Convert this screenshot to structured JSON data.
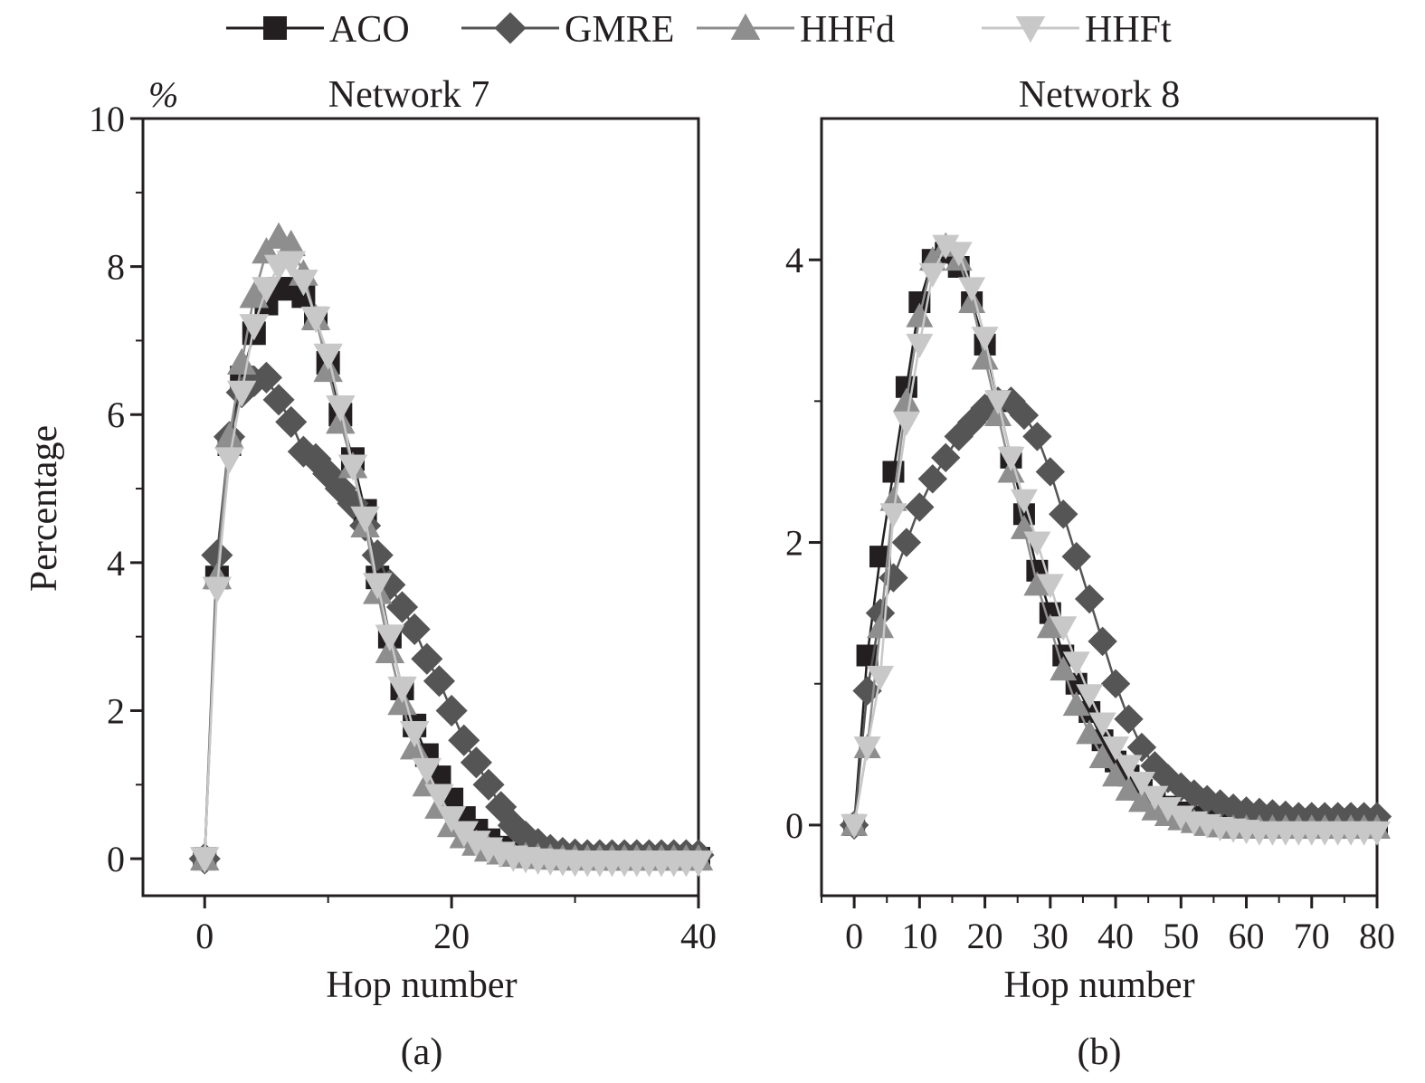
{
  "legend": {
    "placement": "top-center",
    "entries": [
      {
        "name": "ACO",
        "marker": "square",
        "color": "#231f20"
      },
      {
        "name": "GMRE",
        "marker": "diamond",
        "color": "#555555"
      },
      {
        "name": "HHFd",
        "marker": "triangle-up",
        "color": "#8e8e8e"
      },
      {
        "name": "HHFt",
        "marker": "triangle-down",
        "color": "#c8c8c8"
      }
    ]
  },
  "chart_data": [
    {
      "type": "line",
      "panel_label": "(a)",
      "title": "Network 7",
      "unit_label": "%",
      "xlabel": "Hop number",
      "ylabel": "Percentage",
      "xlim": [
        -5,
        40
      ],
      "ylim": [
        -0.5,
        10
      ],
      "xticks": [
        0,
        20,
        40
      ],
      "yticks": [
        0,
        2,
        4,
        6,
        8,
        10
      ],
      "grid": false,
      "x": [
        0,
        1,
        2,
        3,
        4,
        5,
        6,
        7,
        8,
        9,
        10,
        11,
        12,
        13,
        14,
        15,
        16,
        17,
        18,
        19,
        20,
        21,
        22,
        23,
        24,
        25,
        26,
        27,
        28,
        29,
        30,
        31,
        32,
        33,
        34,
        35,
        36,
        37,
        38,
        39,
        40
      ],
      "series": [
        {
          "name": "ACO",
          "values": [
            0,
            3.8,
            5.6,
            6.5,
            7.1,
            7.5,
            7.7,
            7.7,
            7.6,
            7.3,
            6.7,
            6.0,
            5.4,
            4.7,
            3.8,
            3.0,
            2.3,
            1.8,
            1.4,
            1.1,
            0.8,
            0.55,
            0.38,
            0.25,
            0.15,
            0.1,
            0.06,
            0.04,
            0.03,
            0.02,
            0.01,
            0.01,
            0,
            0,
            0,
            0,
            0,
            0,
            0,
            0,
            0
          ]
        },
        {
          "name": "GMRE",
          "values": [
            0,
            4.1,
            5.7,
            6.3,
            6.45,
            6.5,
            6.2,
            5.9,
            5.5,
            5.4,
            5.2,
            5.0,
            4.8,
            4.5,
            4.1,
            3.7,
            3.4,
            3.1,
            2.7,
            2.4,
            2.0,
            1.6,
            1.3,
            1.0,
            0.7,
            0.45,
            0.3,
            0.2,
            0.12,
            0.08,
            0.06,
            0.05,
            0.05,
            0.05,
            0.05,
            0.05,
            0.05,
            0.05,
            0.05,
            0.05,
            0.05
          ]
        },
        {
          "name": "HHFd",
          "values": [
            0,
            3.8,
            5.7,
            6.7,
            7.6,
            8.2,
            8.4,
            8.3,
            7.9,
            7.3,
            6.6,
            5.9,
            5.3,
            4.5,
            3.6,
            2.8,
            2.1,
            1.5,
            1.0,
            0.7,
            0.45,
            0.3,
            0.2,
            0.12,
            0.08,
            0.05,
            0.03,
            0.02,
            0.01,
            0,
            0,
            0,
            0,
            0,
            0,
            0,
            0,
            0,
            0,
            0,
            0
          ]
        },
        {
          "name": "HHFt",
          "values": [
            0,
            3.65,
            5.4,
            6.3,
            7.2,
            7.7,
            8.0,
            8.05,
            7.8,
            7.3,
            6.8,
            6.1,
            5.3,
            4.6,
            3.7,
            3.0,
            2.3,
            1.7,
            1.2,
            0.85,
            0.55,
            0.35,
            0.22,
            0.13,
            0.07,
            0.02,
            0,
            -0.02,
            -0.03,
            -0.04,
            -0.05,
            -0.05,
            -0.05,
            -0.05,
            -0.05,
            -0.05,
            -0.05,
            -0.05,
            -0.05,
            -0.05,
            -0.05
          ]
        }
      ]
    },
    {
      "type": "line",
      "panel_label": "(b)",
      "title": "Network 8",
      "unit_label": "",
      "xlabel": "Hop number",
      "ylabel": "",
      "xlim": [
        -5,
        80
      ],
      "ylim": [
        -0.5,
        5
      ],
      "xticks": [
        0,
        10,
        20,
        30,
        40,
        50,
        60,
        70,
        80
      ],
      "yticks": [
        0,
        2,
        4
      ],
      "grid": false,
      "x": [
        0,
        2,
        4,
        6,
        8,
        10,
        12,
        14,
        16,
        18,
        20,
        22,
        24,
        26,
        28,
        30,
        32,
        34,
        36,
        38,
        40,
        42,
        44,
        46,
        48,
        50,
        52,
        54,
        56,
        58,
        60,
        62,
        64,
        66,
        68,
        70,
        72,
        74,
        76,
        78,
        80
      ],
      "series": [
        {
          "name": "ACO",
          "values": [
            0,
            1.2,
            1.9,
            2.5,
            3.1,
            3.7,
            4.0,
            4.05,
            3.95,
            3.7,
            3.4,
            3.0,
            2.6,
            2.2,
            1.8,
            1.5,
            1.2,
            1.0,
            0.8,
            0.6,
            0.45,
            0.35,
            0.25,
            0.18,
            0.13,
            0.09,
            0.06,
            0.04,
            0.02,
            0.01,
            0,
            -0.01,
            -0.01,
            -0.02,
            -0.02,
            -0.02,
            -0.02,
            -0.02,
            -0.02,
            -0.02,
            -0.02
          ]
        },
        {
          "name": "GMRE",
          "values": [
            0,
            0.95,
            1.5,
            1.75,
            2.0,
            2.25,
            2.45,
            2.6,
            2.75,
            2.85,
            2.95,
            3.0,
            3.0,
            2.9,
            2.75,
            2.5,
            2.2,
            1.9,
            1.6,
            1.3,
            1.0,
            0.75,
            0.55,
            0.42,
            0.33,
            0.27,
            0.22,
            0.18,
            0.15,
            0.12,
            0.1,
            0.09,
            0.08,
            0.07,
            0.06,
            0.06,
            0.06,
            0.06,
            0.06,
            0.06,
            0.06
          ]
        },
        {
          "name": "HHFd",
          "values": [
            0,
            0.55,
            1.4,
            2.3,
            3.0,
            3.6,
            4.0,
            4.1,
            4.0,
            3.7,
            3.3,
            2.9,
            2.5,
            2.1,
            1.7,
            1.4,
            1.1,
            0.85,
            0.65,
            0.48,
            0.35,
            0.25,
            0.17,
            0.11,
            0.07,
            0.04,
            0.02,
            0,
            -0.01,
            -0.02,
            -0.02,
            -0.02,
            -0.02,
            -0.02,
            -0.02,
            -0.02,
            -0.02,
            -0.02,
            -0.02,
            -0.02,
            -0.02
          ]
        },
        {
          "name": "HHFt",
          "values": [
            0,
            0.55,
            1.05,
            2.2,
            2.85,
            3.4,
            3.9,
            4.1,
            4.05,
            3.8,
            3.45,
            3.0,
            2.6,
            2.3,
            2.0,
            1.7,
            1.4,
            1.15,
            0.92,
            0.72,
            0.55,
            0.42,
            0.3,
            0.2,
            0.12,
            0.06,
            0.02,
            0,
            -0.02,
            -0.03,
            -0.04,
            -0.05,
            -0.05,
            -0.05,
            -0.05,
            -0.05,
            -0.05,
            -0.05,
            -0.05,
            -0.05,
            -0.05
          ]
        }
      ]
    }
  ]
}
